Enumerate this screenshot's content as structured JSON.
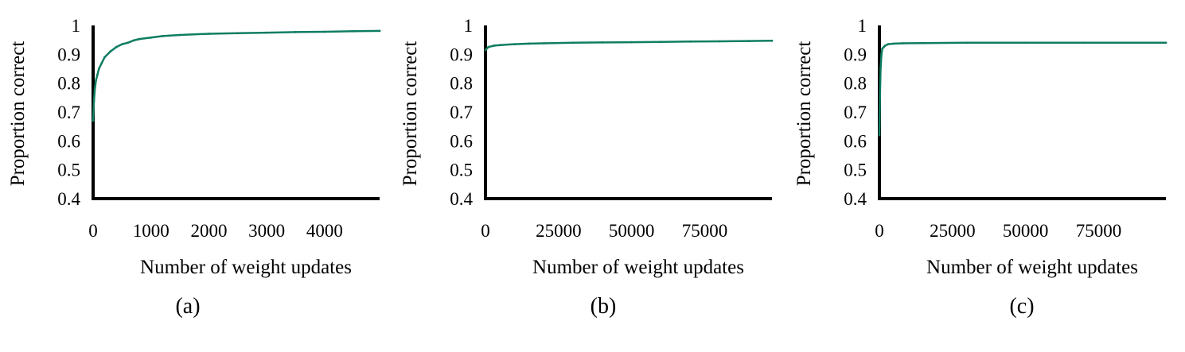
{
  "colors": {
    "series": "#0f7d62",
    "axis": "#000000"
  },
  "chart_data": [
    {
      "type": "line",
      "panel_label": "(a)",
      "xlabel": "Number of weight updates",
      "ylabel": "Proportion correct",
      "xlim": [
        0,
        4950
      ],
      "ylim": [
        0.4,
        1
      ],
      "xticks": [
        0,
        1000,
        2000,
        3000,
        4000
      ],
      "xtick_labels": [
        "0",
        "1000",
        "2000",
        "3000",
        "4000"
      ],
      "yticks": [
        0.4,
        0.5,
        0.6,
        0.7,
        0.8,
        0.9,
        1
      ],
      "ytick_labels": [
        "0.4",
        "0.5",
        "0.6",
        "0.7",
        "0.8",
        "0.9",
        "1"
      ],
      "grid": false,
      "series": [
        {
          "x": [
            0,
            15,
            30,
            50,
            75,
            100,
            150,
            200,
            300,
            400,
            500,
            600,
            700,
            800,
            1000,
            1200,
            1500,
            2000,
            2500,
            3000,
            3500,
            4000,
            4500,
            4950
          ],
          "y": [
            0.67,
            0.74,
            0.78,
            0.81,
            0.83,
            0.85,
            0.87,
            0.89,
            0.91,
            0.925,
            0.935,
            0.94,
            0.948,
            0.953,
            0.958,
            0.963,
            0.967,
            0.971,
            0.973,
            0.975,
            0.977,
            0.978,
            0.98,
            0.981
          ]
        }
      ]
    },
    {
      "type": "line",
      "panel_label": "(b)",
      "xlabel": "Number of weight updates",
      "ylabel": "Proportion correct",
      "xlim": [
        0,
        98000
      ],
      "ylim": [
        0.4,
        1
      ],
      "xticks": [
        0,
        25000,
        50000,
        75000
      ],
      "xtick_labels": [
        "0",
        "25000",
        "50000",
        "75000"
      ],
      "yticks": [
        0.4,
        0.5,
        0.6,
        0.7,
        0.8,
        0.9,
        1
      ],
      "ytick_labels": [
        "0.4",
        "0.5",
        "0.6",
        "0.7",
        "0.8",
        "0.9",
        "1"
      ],
      "grid": false,
      "series": [
        {
          "x": [
            0,
            1000,
            3000,
            5000,
            10000,
            15000,
            20000,
            30000,
            40000,
            50000,
            60000,
            70000,
            80000,
            90000,
            98000
          ],
          "y": [
            0.915,
            0.925,
            0.93,
            0.932,
            0.935,
            0.937,
            0.938,
            0.94,
            0.941,
            0.942,
            0.943,
            0.944,
            0.945,
            0.946,
            0.947
          ]
        }
      ]
    },
    {
      "type": "line",
      "panel_label": "(c)",
      "xlabel": "Number of weight updates",
      "ylabel": "Proportion correct",
      "xlim": [
        0,
        98000
      ],
      "ylim": [
        0.4,
        1
      ],
      "xticks": [
        0,
        25000,
        50000,
        75000
      ],
      "xtick_labels": [
        "0",
        "25000",
        "50000",
        "75000"
      ],
      "yticks": [
        0.4,
        0.5,
        0.6,
        0.7,
        0.8,
        0.9,
        1
      ],
      "ytick_labels": [
        "0.4",
        "0.5",
        "0.6",
        "0.7",
        "0.8",
        "0.9",
        "1"
      ],
      "grid": false,
      "series": [
        {
          "x": [
            0,
            200,
            400,
            700,
            1000,
            1500,
            2000,
            3000,
            5000,
            8000,
            15000,
            30000,
            50000,
            70000,
            98000
          ],
          "y": [
            0.62,
            0.75,
            0.85,
            0.9,
            0.92,
            0.925,
            0.93,
            0.935,
            0.937,
            0.938,
            0.939,
            0.94,
            0.94,
            0.94,
            0.94
          ]
        }
      ]
    }
  ]
}
